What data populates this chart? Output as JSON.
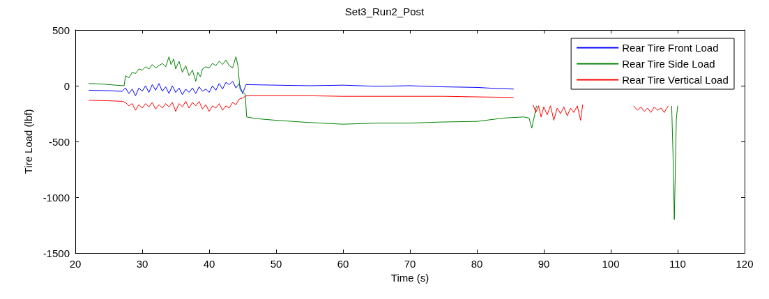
{
  "chart_data": {
    "type": "line",
    "title": "Set3_Run2_Post",
    "xlabel": "Time (s)",
    "ylabel": "Tire Load (lbf)",
    "xlim": [
      20,
      120
    ],
    "xticks": [
      20,
      30,
      40,
      50,
      60,
      70,
      80,
      90,
      100,
      110,
      120
    ],
    "ylim": [
      -1500,
      500
    ],
    "yticks": [
      -1500,
      -1000,
      -500,
      0,
      500
    ],
    "grid": false,
    "legend": "top right",
    "marker": "none",
    "line_style": "solid",
    "series": [
      {
        "name": "Rear Tire Front Load",
        "color": "#0000ff",
        "x": [
          22,
          25,
          27,
          27.5,
          28,
          28.5,
          29,
          29.5,
          30,
          30.5,
          31,
          31.5,
          32,
          32.5,
          33,
          33.5,
          34,
          34.5,
          35,
          35.5,
          36,
          36.5,
          37,
          37.5,
          38,
          38.5,
          39,
          39.5,
          40,
          40.5,
          41,
          41.5,
          42,
          42.5,
          43,
          43.5,
          44,
          44.5,
          45,
          45.5,
          50,
          55,
          60,
          65,
          70,
          75,
          80,
          83,
          85.5
        ],
        "values": [
          -40,
          -45,
          -50,
          -20,
          -70,
          -30,
          -90,
          -20,
          -50,
          0,
          -60,
          10,
          -40,
          20,
          -50,
          -10,
          -70,
          0,
          -60,
          -20,
          -80,
          -30,
          -60,
          -20,
          -70,
          -10,
          -50,
          -30,
          -60,
          0,
          -40,
          20,
          -30,
          30,
          10,
          40,
          -20,
          20,
          -70,
          10,
          5,
          0,
          5,
          -5,
          0,
          -10,
          -15,
          -25,
          -30
        ]
      },
      {
        "name": "Rear Tire Side Load",
        "color": "#008000",
        "x": [
          22,
          24,
          26,
          27.3,
          27.5,
          28,
          28.5,
          29,
          29.5,
          30,
          30.5,
          31,
          31.5,
          32,
          32.5,
          33,
          33.5,
          34,
          34.3,
          34.7,
          35,
          35.5,
          36,
          36.5,
          37,
          37.5,
          38,
          38.3,
          38.7,
          39,
          39.5,
          40,
          40.5,
          41,
          41.5,
          42,
          42.5,
          43,
          43.5,
          44,
          44.3,
          44.6,
          45,
          45.4,
          45.6,
          47,
          50,
          55,
          60,
          65,
          70,
          75,
          80,
          84,
          87,
          87.8,
          88.2,
          88.6,
          88.9,
          100,
          109.1,
          109.3,
          109.5,
          109.8,
          110
        ],
        "values": [
          20,
          15,
          5,
          0,
          90,
          70,
          120,
          110,
          150,
          140,
          170,
          150,
          190,
          160,
          180,
          200,
          170,
          260,
          190,
          240,
          150,
          220,
          120,
          180,
          90,
          140,
          40,
          120,
          80,
          150,
          170,
          160,
          200,
          180,
          220,
          190,
          230,
          180,
          160,
          260,
          180,
          -30,
          -60,
          -80,
          -280,
          -295,
          -310,
          -330,
          -345,
          -335,
          -335,
          -325,
          -320,
          -290,
          -280,
          -290,
          -380,
          -270,
          -180,
          null,
          -180,
          -600,
          -1200,
          -300,
          -180
        ]
      },
      {
        "name": "Rear Tire Vertical Load",
        "color": "#ff0000",
        "x": [
          22,
          25,
          27,
          27.5,
          28,
          28.5,
          29,
          29.5,
          30,
          30.5,
          31,
          31.5,
          32,
          32.5,
          33,
          33.5,
          34,
          34.5,
          35,
          35.5,
          36,
          36.5,
          37,
          37.5,
          38,
          38.5,
          39,
          39.5,
          40,
          40.5,
          41,
          41.5,
          42,
          42.5,
          43,
          43.5,
          44,
          44.5,
          45,
          45.5,
          50,
          55,
          60,
          65,
          70,
          75,
          80,
          85.5,
          87,
          88.4,
          88.8,
          89.2,
          89.6,
          90,
          90.5,
          91,
          91.5,
          92,
          92.5,
          93,
          93.5,
          94,
          94.5,
          95,
          95.5,
          95.8,
          100,
          103.4,
          104,
          104.5,
          105,
          105.5,
          106,
          106.5,
          107,
          107.5,
          108,
          108.6
        ],
        "values": [
          -130,
          -135,
          -140,
          -150,
          -180,
          -160,
          -220,
          -170,
          -200,
          -160,
          -190,
          -150,
          -210,
          -170,
          -200,
          -160,
          -190,
          -150,
          -230,
          -160,
          -190,
          -140,
          -200,
          -150,
          -180,
          -140,
          -210,
          -170,
          -230,
          -180,
          -200,
          -160,
          -220,
          -180,
          -200,
          -150,
          -170,
          -120,
          -110,
          -90,
          -90,
          -90,
          -95,
          -95,
          -95,
          -95,
          -100,
          -105,
          null,
          -170,
          -240,
          -180,
          -280,
          -190,
          -260,
          -180,
          -310,
          -200,
          -250,
          -190,
          -270,
          -200,
          -240,
          -180,
          -310,
          -170,
          null,
          -180,
          -220,
          -190,
          -230,
          -200,
          -240,
          -190,
          -220,
          -200,
          -240,
          -180
        ]
      }
    ]
  }
}
